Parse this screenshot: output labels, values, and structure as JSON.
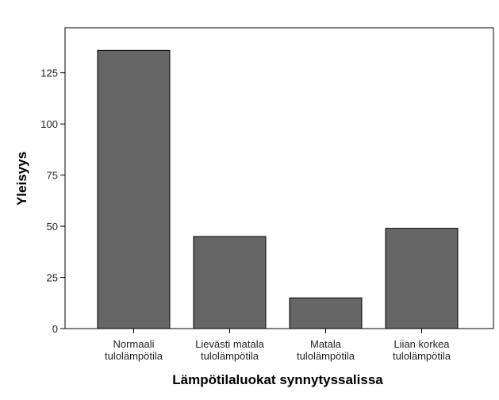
{
  "chart_data": {
    "type": "bar",
    "xlabel": "Lämpötilaluokat synnytyssalissa",
    "ylabel": "Yleisyys",
    "categories": [
      [
        "Normaali",
        "tulolämpötila"
      ],
      [
        "Lievästi matala",
        "tulolämpötila"
      ],
      [
        "Matala",
        "tulolämpötila"
      ],
      [
        "Liian korkea",
        "tulolämpötila"
      ]
    ],
    "values": [
      136,
      45,
      15,
      49
    ],
    "color": "#666666",
    "ylim": [
      0,
      147
    ],
    "yticks": [
      0,
      25,
      50,
      75,
      100,
      125
    ],
    "grid": false
  }
}
